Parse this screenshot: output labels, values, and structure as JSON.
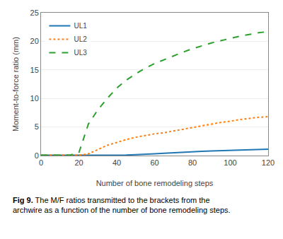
{
  "chart_data": {
    "type": "line",
    "xlabel": "Number of bone remodeling steps",
    "ylabel": "Moment-to-force ratio (mm)",
    "x": [
      0,
      5,
      10,
      15,
      20,
      25,
      30,
      35,
      40,
      45,
      50,
      55,
      60,
      65,
      70,
      75,
      80,
      85,
      90,
      95,
      100,
      105,
      110,
      115,
      120
    ],
    "series": [
      {
        "name": "UL1",
        "line_style": "solid",
        "values": [
          0.05,
          0.05,
          0.05,
          0.05,
          0.05,
          0.05,
          0.05,
          0.05,
          0.07,
          0.1,
          0.15,
          0.2,
          0.3,
          0.4,
          0.5,
          0.6,
          0.7,
          0.75,
          0.8,
          0.85,
          0.9,
          0.95,
          1.0,
          1.05,
          1.1
        ]
      },
      {
        "name": "UL2",
        "line_style": "dot",
        "values": [
          0.05,
          0.05,
          0.05,
          0.05,
          0.05,
          0.3,
          1.0,
          1.8,
          2.3,
          2.8,
          3.2,
          3.5,
          3.8,
          4.0,
          4.3,
          4.6,
          4.9,
          5.2,
          5.5,
          5.8,
          6.0,
          6.3,
          6.5,
          6.7,
          6.8
        ]
      },
      {
        "name": "UL3",
        "line_style": "dash",
        "values": [
          0.05,
          0.05,
          0.05,
          0.05,
          0.5,
          5.5,
          8.0,
          10.0,
          11.8,
          13.2,
          14.3,
          15.3,
          16.1,
          16.8,
          17.5,
          18.1,
          18.7,
          19.2,
          19.7,
          20.1,
          20.5,
          20.9,
          21.2,
          21.5,
          21.7
        ]
      }
    ],
    "xlim": [
      0,
      120
    ],
    "ylim": [
      0,
      25
    ],
    "xticks": [
      0,
      20,
      40,
      60,
      80,
      100,
      120
    ],
    "yticks": [
      0,
      5,
      10,
      15,
      20,
      25
    ],
    "grid": true,
    "legend": "upper left",
    "annotations": [
      "Fig 9.",
      "The M/F ratios transmitted to the brackets from the archwire as a function of the number of bone remodeling steps."
    ]
  }
}
